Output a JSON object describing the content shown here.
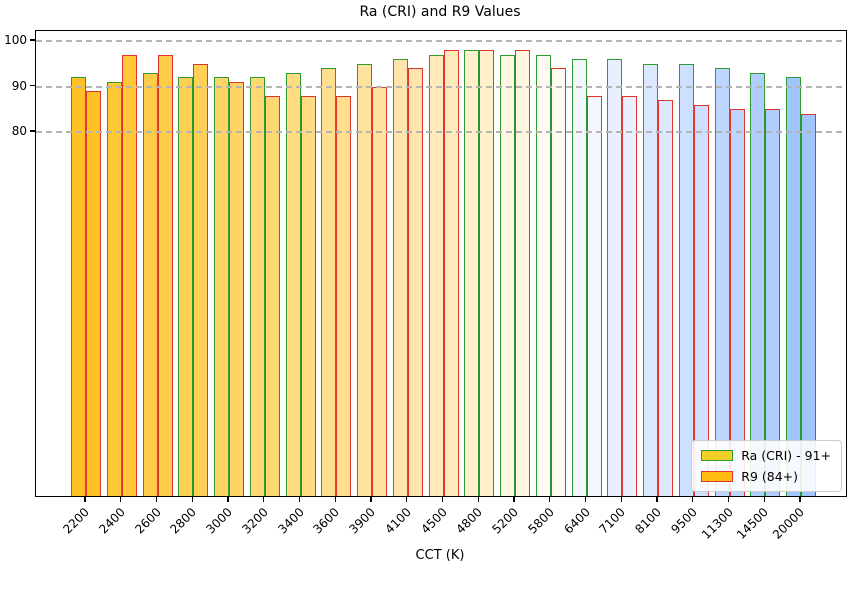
{
  "chart_data": {
    "type": "bar",
    "title": "Ra (CRI) and R9 Values",
    "xlabel": "CCT (K)",
    "ylabel": "",
    "categories": [
      "2200",
      "2400",
      "2600",
      "2800",
      "3000",
      "3200",
      "3400",
      "3600",
      "3900",
      "4100",
      "4500",
      "4800",
      "5200",
      "5800",
      "6400",
      "7100",
      "8100",
      "9500",
      "11300",
      "14500",
      "20000"
    ],
    "series": [
      {
        "name": "Ra (CRI) - 91+",
        "edge_color": "#2e9b31",
        "legend_fill": "#f0d028",
        "values": [
          92,
          91,
          93,
          92,
          92,
          92,
          93,
          94,
          95,
          96,
          97,
          98,
          97,
          97,
          96,
          96,
          95,
          95,
          94,
          93,
          92
        ]
      },
      {
        "name": "R9 (84+)",
        "edge_color": "#e0342c",
        "legend_fill": "#ffbb10",
        "values": [
          89,
          97,
          97,
          95,
          91,
          88,
          88,
          88,
          90,
          94,
          98,
          98,
          98,
          94,
          88,
          88,
          87,
          86,
          85,
          85,
          84
        ]
      }
    ],
    "bar_fill_by_category": [
      "#ffc125",
      "#ffc837",
      "#ffcc47",
      "#ffd055",
      "#ffd466",
      "#ffd773",
      "#ffdb82",
      "#ffde8e",
      "#ffe29e",
      "#ffe5ab",
      "#ffeabc",
      "#ffefcb",
      "#fff5e0",
      "#fffbf2",
      "#f3f6ff",
      "#e8efff",
      "#dce8ff",
      "#cde0ff",
      "#bdd6ff",
      "#afceff",
      "#a0c5ff"
    ],
    "yticks": [
      80,
      90,
      100
    ],
    "ylim": [
      0,
      102.2
    ],
    "grid": "horizontal dashed at yticks, drawn above bars",
    "grid_color": "#b4b4b4",
    "legend_position": "lower right"
  }
}
